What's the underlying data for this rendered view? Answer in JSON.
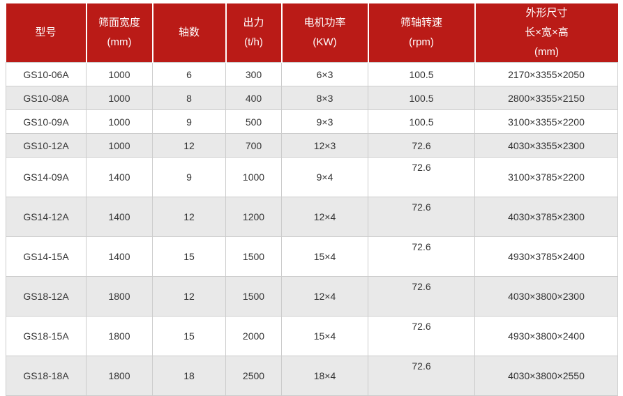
{
  "colors": {
    "header_bg": "#ba1b17",
    "header_text": "#ffffff",
    "row_alt_bg": "#e9e9e9",
    "border": "#cccccc",
    "body_text": "#333333",
    "page_bg": "#ffffff"
  },
  "chart_data": {
    "type": "table",
    "title": "",
    "legend_position": "none",
    "columns": [
      {
        "id": "model",
        "lines": [
          "型号"
        ]
      },
      {
        "id": "screen_width",
        "lines": [
          "筛面宽度",
          "(mm)"
        ]
      },
      {
        "id": "shaft_count",
        "lines": [
          "轴数"
        ]
      },
      {
        "id": "output",
        "lines": [
          "出力",
          "(t/h)"
        ]
      },
      {
        "id": "motor_power",
        "lines": [
          "电机功率",
          "(KW)"
        ]
      },
      {
        "id": "shaft_speed",
        "lines": [
          "筛轴转速",
          "(rpm)"
        ]
      },
      {
        "id": "dimensions",
        "lines": [
          "外形尺寸",
          "长×宽×高",
          "(mm)"
        ]
      }
    ],
    "rows": [
      {
        "model": "GS10-06A",
        "screen_width": "1000",
        "shaft_count": "6",
        "output": "300",
        "motor_power": "6×3",
        "shaft_speed": "100.5",
        "dimensions": "2170×3355×2050"
      },
      {
        "model": "GS10-08A",
        "screen_width": "1000",
        "shaft_count": "8",
        "output": "400",
        "motor_power": "8×3",
        "shaft_speed": "100.5",
        "dimensions": "2800×3355×2150"
      },
      {
        "model": "GS10-09A",
        "screen_width": "1000",
        "shaft_count": "9",
        "output": "500",
        "motor_power": "9×3",
        "shaft_speed": "100.5",
        "dimensions": "3100×3355×2200"
      },
      {
        "model": "GS10-12A",
        "screen_width": "1000",
        "shaft_count": "12",
        "output": "700",
        "motor_power": "12×3",
        "shaft_speed": "72.6",
        "dimensions": "4030×3355×2300"
      },
      {
        "model": "GS14-09A",
        "screen_width": "1400",
        "shaft_count": "9",
        "output": "1000",
        "motor_power": "9×4",
        "shaft_speed": "72.6",
        "dimensions": "3100×3785×2200"
      },
      {
        "model": "GS14-12A",
        "screen_width": "1400",
        "shaft_count": "12",
        "output": "1200",
        "motor_power": "12×4",
        "shaft_speed": "72.6",
        "dimensions": "4030×3785×2300"
      },
      {
        "model": "GS14-15A",
        "screen_width": "1400",
        "shaft_count": "15",
        "output": "1500",
        "motor_power": "15×4",
        "shaft_speed": "72.6",
        "dimensions": "4930×3785×2400"
      },
      {
        "model": "GS18-12A",
        "screen_width": "1800",
        "shaft_count": "12",
        "output": "1500",
        "motor_power": "12×4",
        "shaft_speed": "72.6",
        "dimensions": "4030×3800×2300"
      },
      {
        "model": "GS18-15A",
        "screen_width": "1800",
        "shaft_count": "15",
        "output": "2000",
        "motor_power": "15×4",
        "shaft_speed": "72.6",
        "dimensions": "4930×3800×2400"
      },
      {
        "model": "GS18-18A",
        "screen_width": "1800",
        "shaft_count": "18",
        "output": "2500",
        "motor_power": "18×4",
        "shaft_speed": "72.6",
        "dimensions": "4030×3800×2550"
      }
    ]
  }
}
